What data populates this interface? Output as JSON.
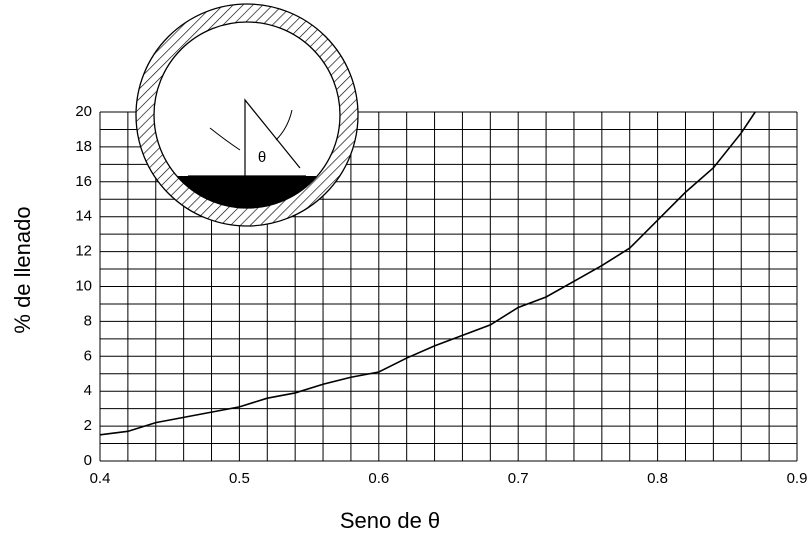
{
  "chart_data": {
    "type": "line",
    "x_label": "Seno de θ",
    "y_label": "% de llenado",
    "annotation": "θ",
    "x": [
      0.4,
      0.42,
      0.44,
      0.46,
      0.48,
      0.5,
      0.52,
      0.54,
      0.56,
      0.58,
      0.6,
      0.62,
      0.64,
      0.66,
      0.68,
      0.7,
      0.72,
      0.74,
      0.76,
      0.78,
      0.8,
      0.82,
      0.84,
      0.86,
      0.87
    ],
    "values": [
      1.5,
      1.7,
      2.2,
      2.5,
      2.8,
      3.1,
      3.6,
      3.9,
      4.4,
      4.8,
      5.1,
      5.9,
      6.6,
      7.2,
      7.8,
      8.8,
      9.4,
      10.3,
      11.2,
      12.2,
      13.8,
      15.4,
      16.8,
      18.8,
      20
    ],
    "color": "#000000",
    "xlim": [
      0.4,
      0.9
    ],
    "ylim": [
      0,
      20
    ],
    "xticks": [
      0.4,
      0.5,
      0.6,
      0.7,
      0.8,
      0.9
    ],
    "yticks": [
      0,
      2,
      4,
      6,
      8,
      10,
      12,
      14,
      16,
      18,
      20
    ],
    "grid": true
  }
}
